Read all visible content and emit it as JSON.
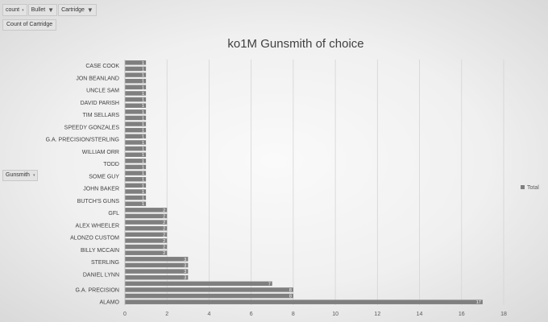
{
  "filters": [
    {
      "label": "count"
    },
    {
      "label": "Bullet"
    },
    {
      "label": "Cartridge"
    }
  ],
  "value_field": "Count of Cartridge",
  "row_field": "Gunsmith",
  "chart_data": {
    "type": "bar",
    "orientation": "horizontal",
    "title": "ko1M Gunsmith of choice",
    "xlim": [
      0,
      18
    ],
    "xticks": [
      0,
      2,
      4,
      6,
      8,
      10,
      12,
      14,
      16,
      18
    ],
    "grid": true,
    "legend": "right",
    "bar_color": "#7f7f7f",
    "series": [
      {
        "name": "Total"
      }
    ],
    "categories": [
      {
        "label": "CASE COOK",
        "values": [
          1,
          1
        ]
      },
      {
        "label": "JON BEANLAND",
        "values": [
          1,
          1
        ]
      },
      {
        "label": "UNCLE SAM",
        "values": [
          1,
          1
        ]
      },
      {
        "label": "DAVID PARISH",
        "values": [
          1,
          1
        ]
      },
      {
        "label": "TIM SELLARS",
        "values": [
          1,
          1
        ]
      },
      {
        "label": "SPEEDY GONZALES",
        "values": [
          1,
          1
        ]
      },
      {
        "label": "G.A. PRECISION/STERLING",
        "values": [
          1,
          1
        ]
      },
      {
        "label": "WILLIAM ORR",
        "values": [
          1,
          1
        ]
      },
      {
        "label": "TODD",
        "values": [
          1,
          1
        ]
      },
      {
        "label": "SOME GUY",
        "values": [
          1,
          1
        ]
      },
      {
        "label": "JOHN BAKER",
        "values": [
          1,
          1
        ]
      },
      {
        "label": "BUTCH'S GUNS",
        "values": [
          1,
          1
        ]
      },
      {
        "label": "GFL",
        "values": [
          2,
          2
        ]
      },
      {
        "label": "ALEX WHEELER",
        "values": [
          2,
          2
        ]
      },
      {
        "label": "ALONZO CUSTOM",
        "values": [
          2,
          2
        ]
      },
      {
        "label": "BILLY MCCAIN",
        "values": [
          2,
          2
        ]
      },
      {
        "label": "STERLING",
        "values": [
          3,
          3
        ]
      },
      {
        "label": "DANIEL LYNN",
        "values": [
          3,
          3
        ]
      },
      {
        "label": "G.A. PRECISION",
        "values": [
          7,
          8,
          8
        ]
      },
      {
        "label": "ALAMO",
        "values": [
          17
        ]
      }
    ]
  }
}
